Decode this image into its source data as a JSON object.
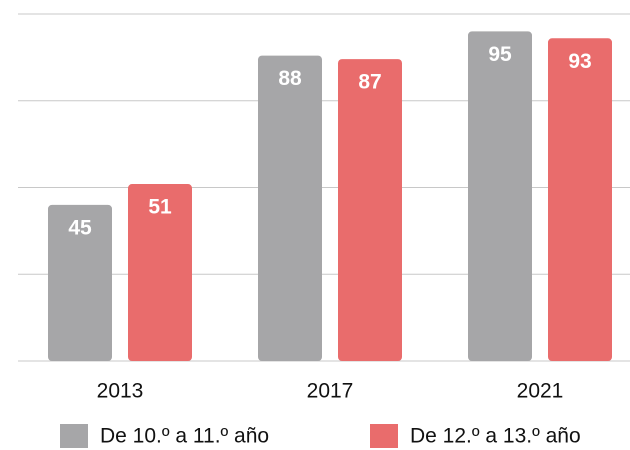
{
  "chart_data": {
    "type": "bar",
    "categories": [
      "2013",
      "2017",
      "2021"
    ],
    "series": [
      {
        "name": "De 10.º a 11.º año",
        "color": "#a6a6a8",
        "values": [
          45,
          88,
          95
        ]
      },
      {
        "name": "De 12.º a 13.º año",
        "color": "#e96c6c",
        "values": [
          51,
          87,
          93
        ]
      }
    ],
    "ylim": [
      0,
      100
    ],
    "yticks": [
      0,
      25,
      50,
      75,
      100
    ],
    "grid": true,
    "legend": "bottom"
  }
}
